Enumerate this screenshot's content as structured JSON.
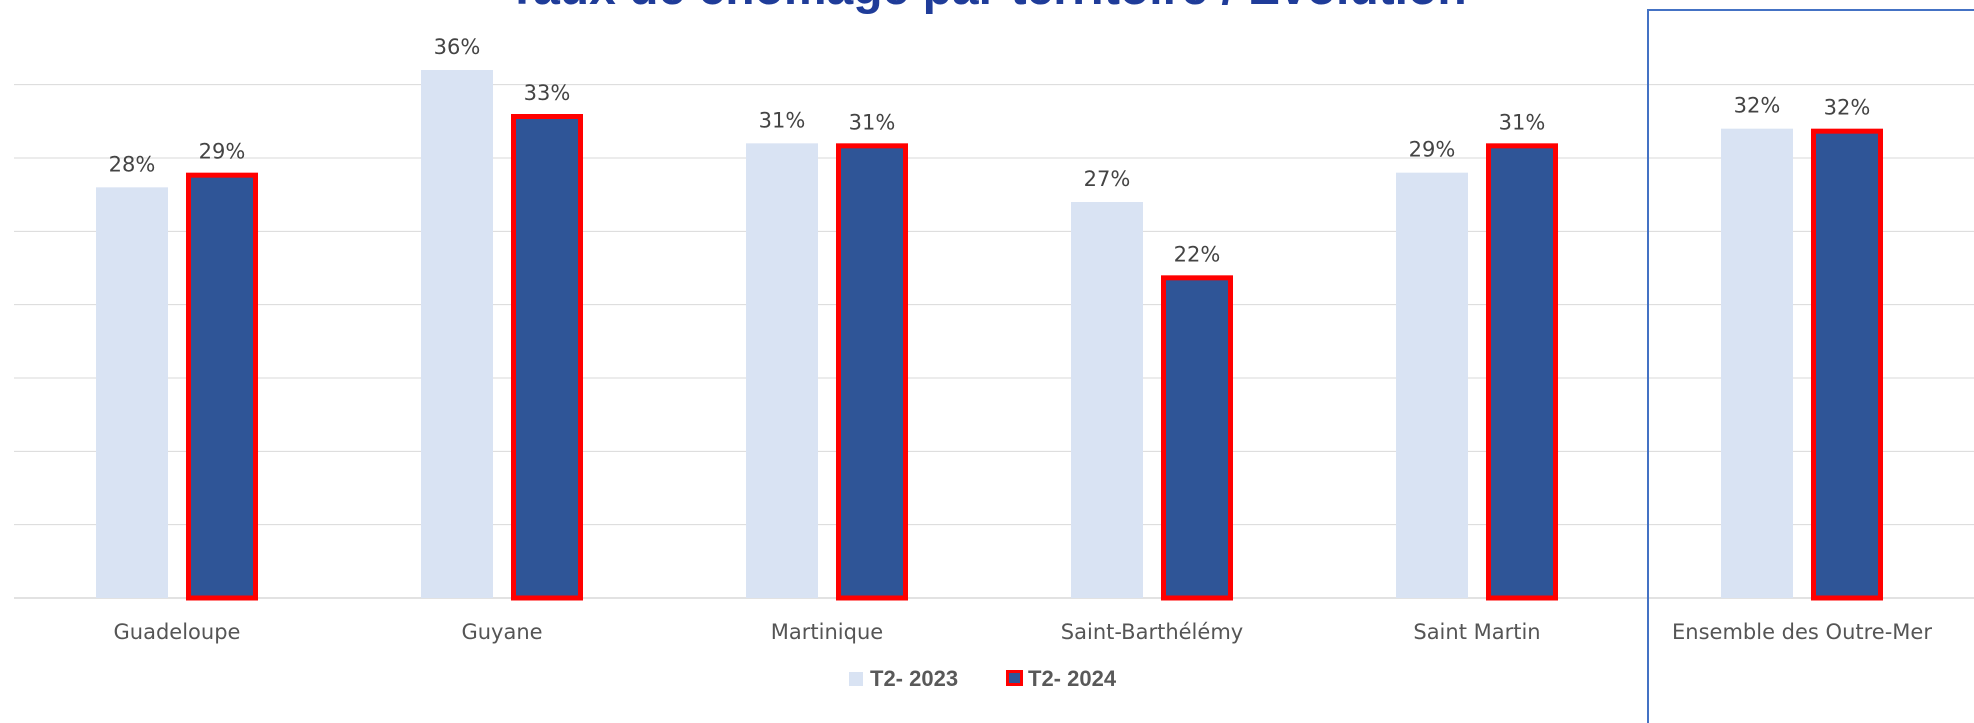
{
  "chart_data": {
    "type": "bar",
    "title": "Taux de chômage par territoire / Evolution",
    "categories": [
      "Guadeloupe",
      "Guyane",
      "Martinique",
      "Saint-Barthélémy",
      "Saint Martin",
      "Ensemble des Outre-Mer"
    ],
    "series": [
      {
        "name": "T2- 2023",
        "values": [
          28,
          36,
          31,
          27,
          29,
          32
        ],
        "labels": [
          "28%",
          "36%",
          "31%",
          "27%",
          "29%",
          "32%"
        ]
      },
      {
        "name": "T2- 2024",
        "values": [
          29,
          33,
          31,
          22,
          31,
          32
        ],
        "labels": [
          "29%",
          "33%",
          "31%",
          "22%",
          "31%",
          "32%"
        ]
      }
    ],
    "unit": "%",
    "ylim": [
      0,
      37.5
    ],
    "grid": true,
    "y_ticks_shown": false,
    "legend": "bottom-center",
    "highlighted_category": "Ensemble des Outre-Mer",
    "colors": {
      "series_2023": "#d9e3f3",
      "series_2024": "#2f5597",
      "series_2024_border": "#ff0000",
      "title": "#1f3c99",
      "grid": "#d9d9d9",
      "highlight_frame": "#4472c4"
    }
  }
}
